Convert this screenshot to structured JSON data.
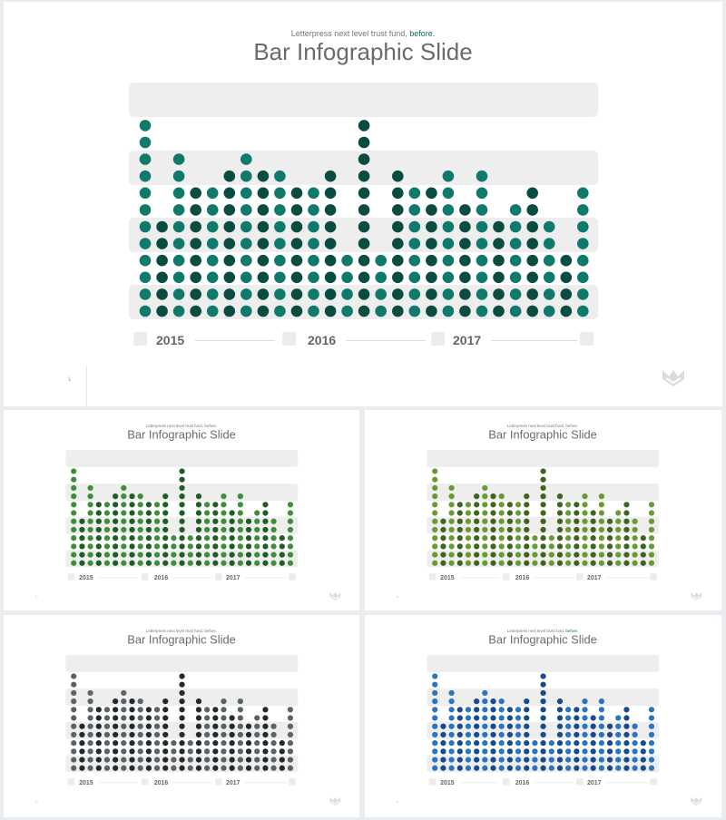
{
  "slide": {
    "subtitle": "Letterpress next level trust fund,",
    "subtitle_accent": "before.",
    "title": "Bar Infographic Slide",
    "years": [
      "2015",
      "2016",
      "2017"
    ],
    "page_number": "1",
    "logo_icon": "leaf-logo-icon"
  },
  "chart_data": {
    "type": "bar",
    "description_unit": "dots per column",
    "values": [
      12,
      6,
      10,
      8,
      8,
      9,
      10,
      9,
      9,
      8,
      8,
      9,
      4,
      12,
      4,
      9,
      8,
      8,
      9,
      7,
      9,
      6,
      7,
      8,
      6,
      4,
      8
    ],
    "year_labels": [
      "2015",
      "2016",
      "2017"
    ]
  },
  "themes": [
    {
      "id": "teal",
      "colors": [
        "#0f7a6c",
        "#0a4d40"
      ]
    },
    {
      "id": "green",
      "colors": [
        "#3f8f3a",
        "#1f5e22"
      ]
    },
    {
      "id": "olive",
      "colors": [
        "#6a9a34",
        "#3e6420"
      ]
    },
    {
      "id": "gray",
      "colors": [
        "#5a6468",
        "#25292b"
      ]
    },
    {
      "id": "blue",
      "colors": [
        "#2b74c2",
        "#184a8c"
      ]
    }
  ]
}
